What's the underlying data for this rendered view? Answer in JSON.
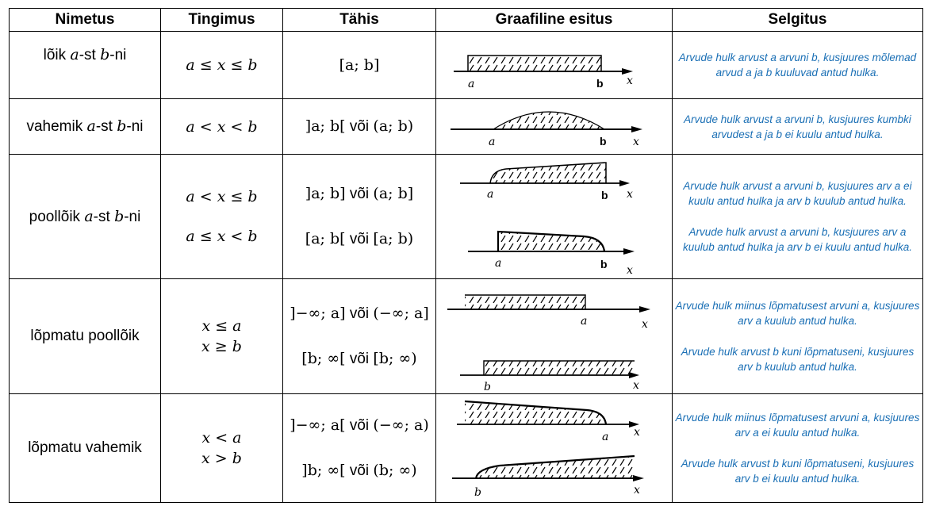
{
  "headers": [
    "Nimetus",
    "Tingimus",
    "Tähis",
    "Graafiline esitus",
    "Selgitus"
  ],
  "rows": [
    {
      "name": {
        "pre": "lõik ",
        "a": "a",
        "mid": "-st ",
        "b": "b",
        "post": "-ni"
      },
      "conditions": [
        "a ≤ x ≤ b"
      ],
      "notations": [
        "[a; b]"
      ],
      "explanations": [
        "Arvude hulk arvust a arvuni b, kusjuures mõlemad arvud a ja b kuuluvad antud hulka."
      ]
    },
    {
      "name": {
        "pre": "vahemik ",
        "a": "a",
        "mid": "-st ",
        "b": "b",
        "post": "-ni"
      },
      "conditions": [
        "a < x < b"
      ],
      "notations": [
        {
          "math": "]a; b[",
          "word": " või ",
          "math2": "(a; b)"
        }
      ],
      "explanations": [
        "Arvude hulk arvust a arvuni b, kusjuures kumbki arvudest a ja b ei kuulu antud hulka."
      ]
    },
    {
      "name": {
        "pre": "poollõik ",
        "a": "a",
        "mid": "-st ",
        "b": "b",
        "post": "-ni"
      },
      "conditions": [
        "a < x ≤ b",
        "a ≤ x < b"
      ],
      "notations": [
        {
          "math": "]a; b]",
          "word": " või ",
          "math2": "(a; b]"
        },
        {
          "math": "[a; b[",
          "word": " või ",
          "math2": "[a; b)"
        }
      ],
      "explanations": [
        "Arvude hulk arvust a arvuni b, kusjuures arv a ei kuulu antud hulka ja arv b kuulub antud hulka.",
        "Arvude hulk arvust a arvuni b, kusjuures arv a kuulub antud hulka ja arv b ei kuulu antud hulka."
      ]
    },
    {
      "name": {
        "text": "lõpmatu poollõik"
      },
      "conditions": [
        "x ≤ a",
        "x ≥ b"
      ],
      "notations": [
        {
          "math": "]−∞; a]",
          "word": " või ",
          "math2": "(−∞; a]"
        },
        {
          "math": "[b; ∞[",
          "word": " või ",
          "math2": "[b; ∞)"
        }
      ],
      "explanations": [
        "Arvude hulk miinus lõpmatusest arvuni a, kusjuures arv a kuulub antud hulka.",
        "Arvude hulk arvust b kuni lõpmatuseni, kusjuures arv b kuulub antud hulka."
      ]
    },
    {
      "name": {
        "text": "lõpmatu vahemik"
      },
      "conditions": [
        "x < a",
        "x > b"
      ],
      "notations": [
        {
          "math": "]−∞; a[",
          "word": " või ",
          "math2": "(−∞; a)"
        },
        {
          "math": "]b; ∞[",
          "word": " või ",
          "math2": "(b; ∞)"
        }
      ],
      "explanations": [
        "Arvude hulk miinus lõpmatusest arvuni a, kusjuures arv a ei kuulu antud hulka.",
        "Arvude hulk arvust b kuni lõpmatuseni, kusjuures arv b ei kuulu antud hulka."
      ]
    }
  ],
  "graph_labels": {
    "a": "a",
    "b": "b",
    "x": "x"
  }
}
